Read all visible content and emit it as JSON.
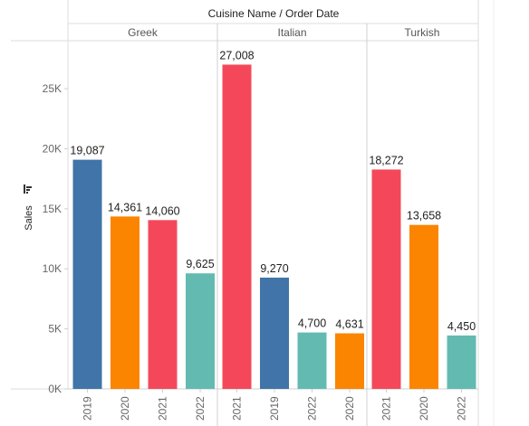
{
  "chart_data": {
    "type": "bar",
    "title": "Cuisine Name  /  Order Date",
    "ylabel": "Sales",
    "ylim": [
      0,
      29000
    ],
    "yticks": [
      0,
      5000,
      10000,
      15000,
      20000,
      25000
    ],
    "ytick_labels": [
      "0K",
      "5K",
      "10K",
      "15K",
      "20K",
      "25K"
    ],
    "grid": false,
    "legend": "none",
    "year_colors": {
      "2019": "#4174a8",
      "2020": "#fb8500",
      "2021": "#f4485a",
      "2022": "#63bab1"
    },
    "panes": [
      {
        "name": "Greek",
        "bars": [
          {
            "year": "2019",
            "value": 19087,
            "label": "19,087"
          },
          {
            "year": "2020",
            "value": 14361,
            "label": "14,361"
          },
          {
            "year": "2021",
            "value": 14060,
            "label": "14,060"
          },
          {
            "year": "2022",
            "value": 9625,
            "label": "9,625"
          }
        ]
      },
      {
        "name": "Italian",
        "bars": [
          {
            "year": "2021",
            "value": 27008,
            "label": "27,008"
          },
          {
            "year": "2019",
            "value": 9270,
            "label": "9,270"
          },
          {
            "year": "2022",
            "value": 4700,
            "label": "4,700"
          },
          {
            "year": "2020",
            "value": 4631,
            "label": "4,631"
          }
        ]
      },
      {
        "name": "Turkish",
        "bars": [
          {
            "year": "2021",
            "value": 18272,
            "label": "18,272"
          },
          {
            "year": "2020",
            "value": 13658,
            "label": "13,658"
          },
          {
            "year": "2022",
            "value": 4450,
            "label": "4,450"
          }
        ]
      }
    ]
  }
}
